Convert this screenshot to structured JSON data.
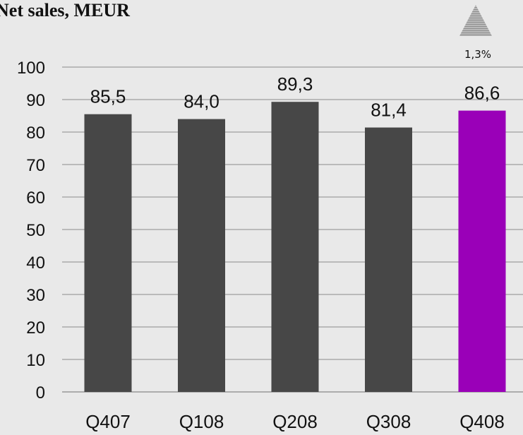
{
  "chart_data": {
    "type": "bar",
    "title": "Net sales, MEUR",
    "categories": [
      "Q407",
      "Q108",
      "Q208",
      "Q308",
      "Q408"
    ],
    "values": [
      85.5,
      84.0,
      89.3,
      81.4,
      86.6
    ],
    "value_labels": [
      "85,5",
      "84,0",
      "89,3",
      "81,4",
      "86,6"
    ],
    "ylim": [
      0,
      100
    ],
    "yticks": [
      0,
      10,
      20,
      30,
      40,
      50,
      60,
      70,
      80,
      90,
      100
    ],
    "xlabel": "",
    "ylabel": "",
    "grid": true,
    "colors": {
      "default": "#474747",
      "highlight": "#9a00b8",
      "highlight_category": "Q408"
    }
  },
  "change_indicator": {
    "icon": "up-triangle-icon",
    "text": "1,3%"
  }
}
